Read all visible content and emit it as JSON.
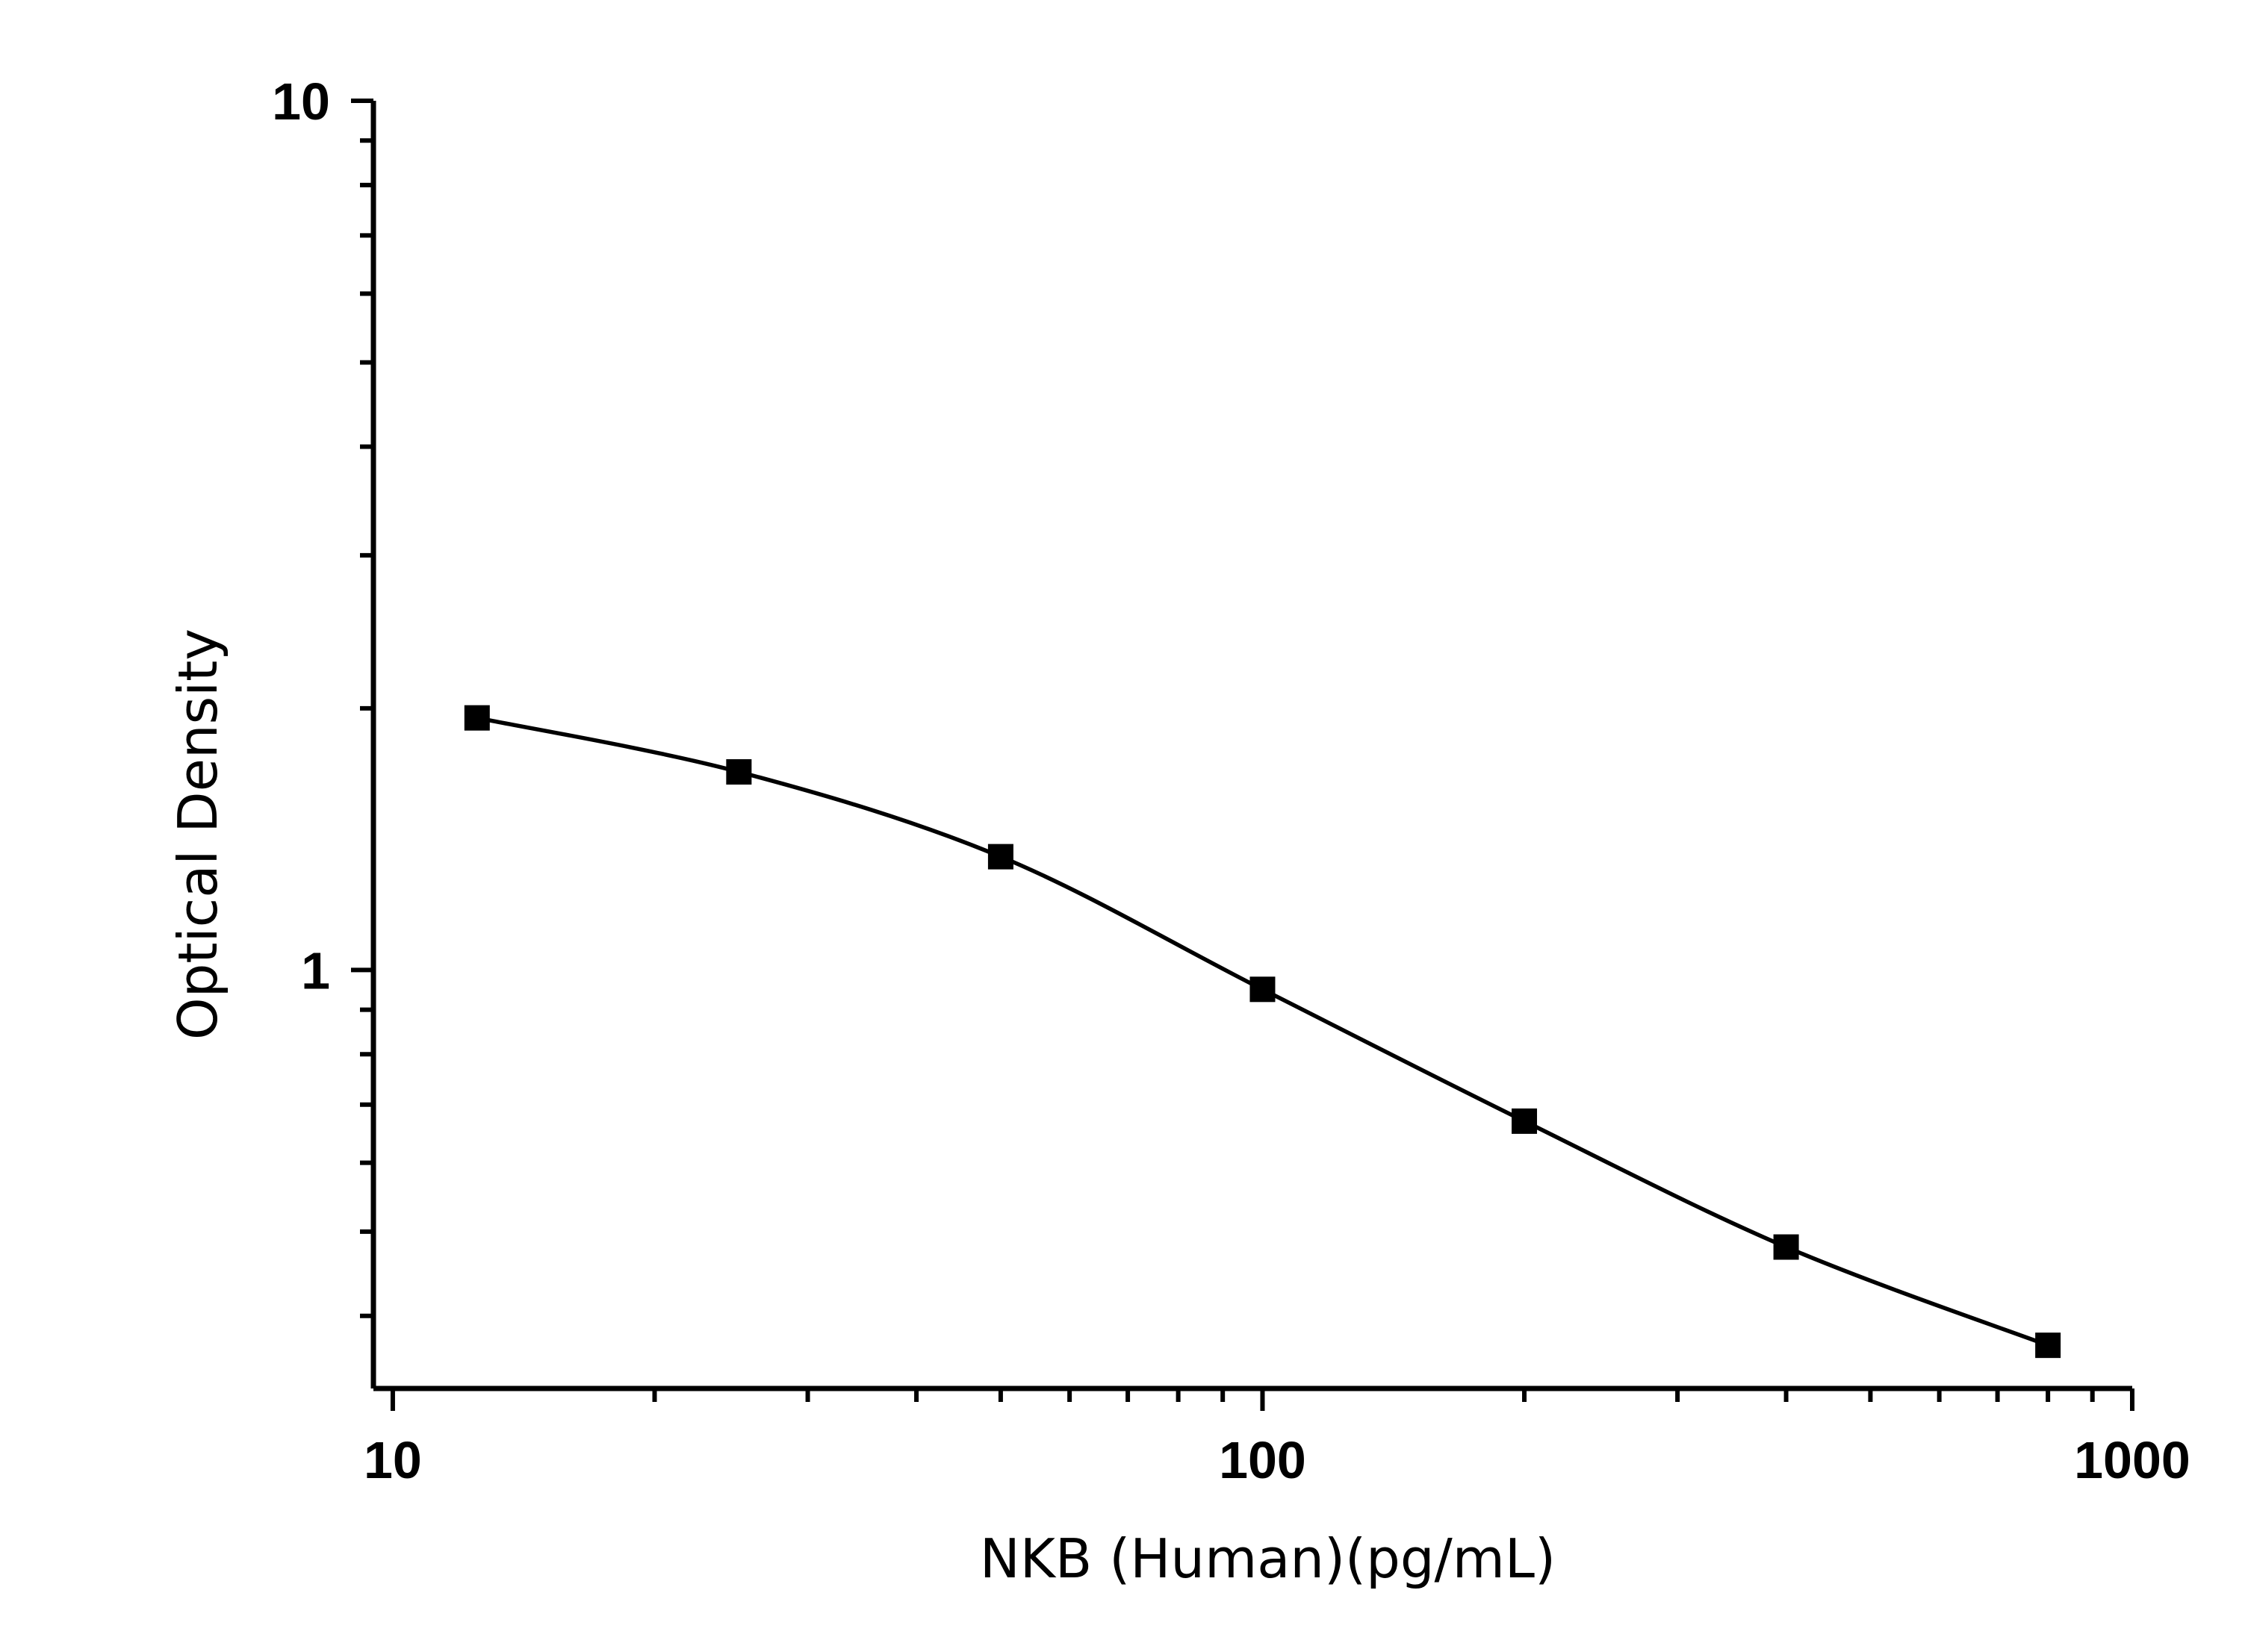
{
  "chart_data": {
    "type": "scatter",
    "title": "",
    "xlabel": "NKB (Human)(pg/mL)",
    "ylabel": "Optical Density",
    "x_scale": "log",
    "y_scale": "log",
    "xlim": [
      9.5,
      1000
    ],
    "ylim": [
      0.33,
      10
    ],
    "x_ticks": [
      {
        "value": 10,
        "label": "10"
      },
      {
        "value": 100,
        "label": "100"
      },
      {
        "value": 1000,
        "label": "1000"
      }
    ],
    "y_ticks": [
      {
        "value": 1,
        "label": "1"
      },
      {
        "value": 10,
        "label": "10"
      }
    ],
    "grid": false,
    "legend": "none",
    "series": [
      {
        "x": [
          12.5,
          25,
          50,
          100,
          200,
          400,
          800
        ],
        "y": [
          1.95,
          1.69,
          1.35,
          0.95,
          0.67,
          0.48,
          0.37
        ],
        "marker": "square",
        "fit_line": true,
        "color": "#000000"
      }
    ]
  }
}
